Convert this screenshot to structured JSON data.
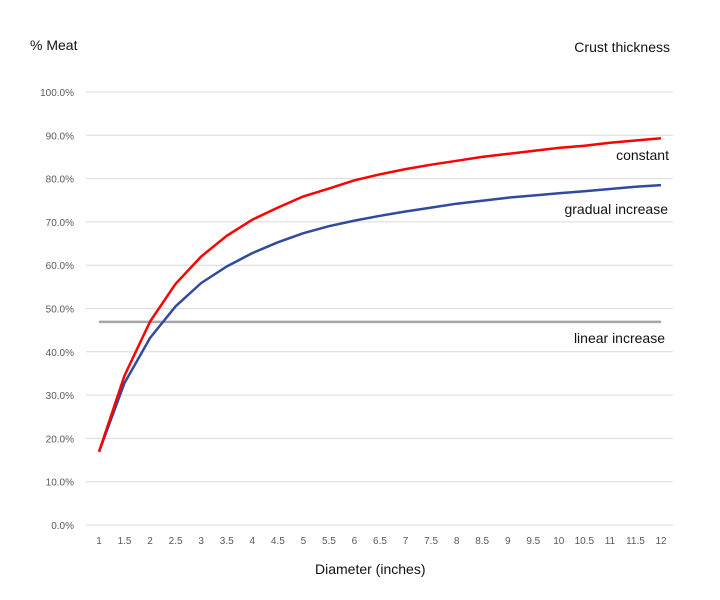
{
  "chart_data": {
    "type": "line",
    "title": "Crust thickness",
    "ylabel": "% Meat",
    "xlabel": "Diameter (inches)",
    "ylim": [
      0,
      100
    ],
    "ytick_labels": [
      "0.0%",
      "10.0%",
      "20.0%",
      "30.0%",
      "40.0%",
      "50.0%",
      "60.0%",
      "70.0%",
      "80.0%",
      "90.0%",
      "100.0%"
    ],
    "categories": [
      "1",
      "1.5",
      "2",
      "2.5",
      "3",
      "3.5",
      "4",
      "4.5",
      "5",
      "5.5",
      "6",
      "6.5",
      "7",
      "7.5",
      "8",
      "8.5",
      "9",
      "9.5",
      "10",
      "10.5",
      "11",
      "11.5",
      "12"
    ],
    "grid": true,
    "legend": "inline labels at right",
    "series": [
      {
        "name": "constant",
        "color": "#ff0000",
        "values": [
          16.9,
          34.5,
          47.0,
          55.7,
          62.0,
          66.8,
          70.5,
          73.3,
          75.9,
          77.7,
          79.6,
          81.0,
          82.2,
          83.2,
          84.1,
          85.0,
          85.7,
          86.4,
          87.1,
          87.6,
          88.3,
          88.8,
          89.3
        ]
      },
      {
        "name": "gradual increase",
        "color": "#2f4a9e",
        "values": [
          16.9,
          32.8,
          43.2,
          50.5,
          55.9,
          59.7,
          62.8,
          65.3,
          67.4,
          69.0,
          70.3,
          71.4,
          72.4,
          73.3,
          74.2,
          74.9,
          75.6,
          76.1,
          76.6,
          77.1,
          77.6,
          78.1,
          78.5
        ]
      },
      {
        "name": "linear increase",
        "color": "#a6a6a6",
        "values": [
          46.9,
          46.9,
          46.9,
          46.9,
          46.9,
          46.9,
          46.9,
          46.9,
          46.9,
          46.9,
          46.9,
          46.9,
          46.9,
          46.9,
          46.9,
          46.9,
          46.9,
          46.9,
          46.9,
          46.9,
          46.9,
          46.9,
          46.9
        ]
      }
    ]
  }
}
